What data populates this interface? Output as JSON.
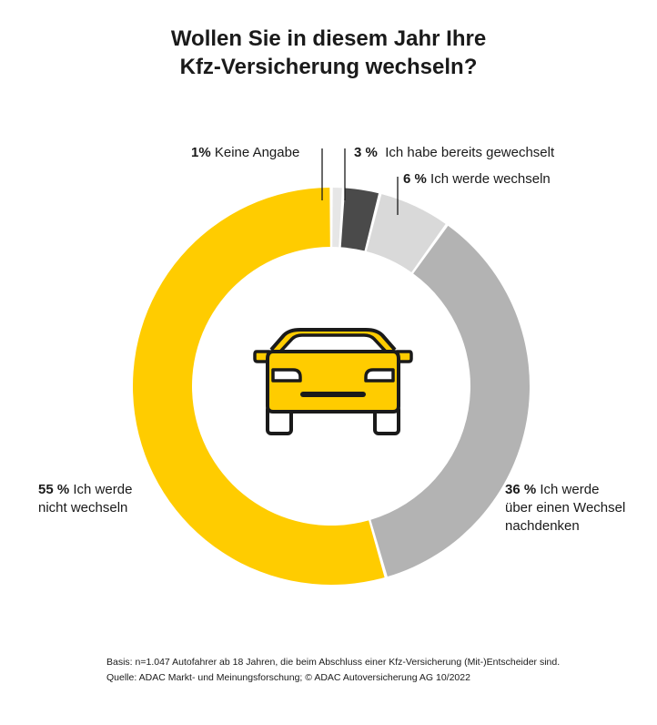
{
  "title_line1": "Wollen Sie in diesem Jahr Ihre",
  "title_line2": "Kfz-Versicherung wechseln?",
  "chart_data": {
    "type": "pie",
    "donut": true,
    "start": "top",
    "slices": [
      {
        "value": 1,
        "pct_label": "1%",
        "label_lines": [
          "Keine Angabe"
        ],
        "color": "#e6e6e6"
      },
      {
        "value": 3,
        "pct_label": "3 %",
        "label_lines": [
          "Ich habe bereits gewechselt"
        ],
        "color": "#4a4a4a"
      },
      {
        "value": 6,
        "pct_label": "6 %",
        "label_lines": [
          "Ich werde wechseln"
        ],
        "color": "#d9d9d9"
      },
      {
        "value": 36,
        "pct_label": "36 %",
        "label_lines": [
          "Ich werde",
          "über einen Wechsel",
          "nachdenken"
        ],
        "color": "#b3b3b3"
      },
      {
        "value": 55,
        "pct_label": "55 %",
        "label_lines": [
          "Ich werde",
          "nicht wechseln"
        ],
        "color": "#ffcc00"
      }
    ],
    "center_icon": "car-icon"
  },
  "footer": {
    "line1": "Basis: n=1.047 Autofahrer ab 18 Jahren, die beim Abschluss einer Kfz-Versicherung (Mit-)Entscheider sind.",
    "line2": "Quelle: ADAC Markt- und Meinungsforschung;  © ADAC Autoversicherung AG 10/2022"
  }
}
